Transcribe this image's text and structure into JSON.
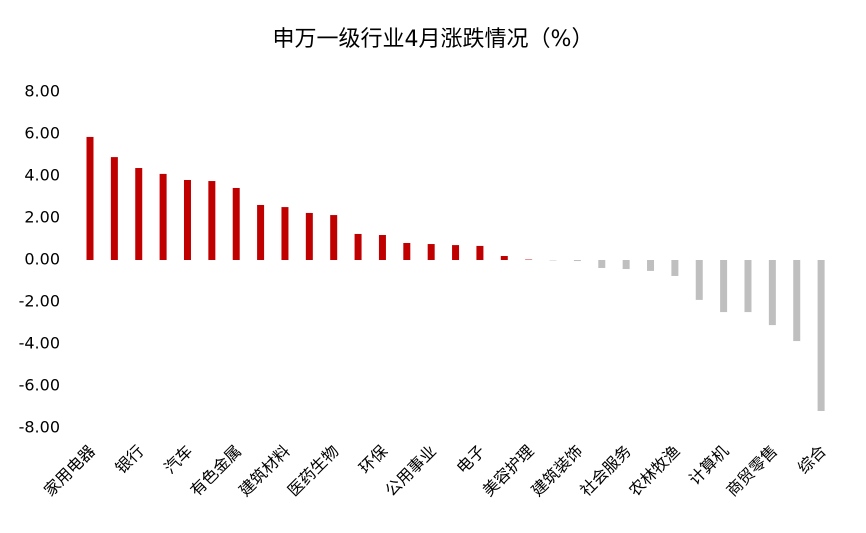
{
  "chart_data": {
    "type": "bar",
    "title": "申万一级行业4月涨跌情况（%）",
    "categories": [
      "家用电器",
      null,
      "银行",
      null,
      "汽车",
      null,
      "有色金属",
      null,
      "建筑材料",
      null,
      "医药生物",
      null,
      "环保",
      null,
      "公用事业",
      null,
      "电子",
      null,
      "美容护理",
      null,
      "建筑装饰",
      null,
      "社会服务",
      null,
      "农林牧渔",
      null,
      "计算机",
      null,
      "商贸零售",
      null,
      "综合"
    ],
    "values": [
      5.86,
      4.9,
      4.38,
      4.1,
      3.81,
      3.76,
      3.43,
      2.62,
      2.52,
      2.24,
      2.14,
      1.24,
      1.19,
      0.81,
      0.76,
      0.71,
      0.67,
      0.19,
      0.02,
      -0.02,
      -0.05,
      -0.38,
      -0.43,
      -0.52,
      -0.76,
      -1.9,
      -2.48,
      -2.48,
      -3.1,
      -3.86,
      -7.19
    ],
    "positive_color": "#c00000",
    "negative_color": "#bfbfbf",
    "ylim": [
      -8,
      8
    ],
    "yticks": [
      {
        "value": 8,
        "label": "8.00"
      },
      {
        "value": 6,
        "label": "6.00"
      },
      {
        "value": 4,
        "label": "4.00"
      },
      {
        "value": 2,
        "label": "2.00"
      },
      {
        "value": 0,
        "label": "0.00"
      },
      {
        "value": -2,
        "label": "-2.00"
      },
      {
        "value": -4,
        "label": "-4.00"
      },
      {
        "value": -6,
        "label": "-6.00"
      },
      {
        "value": -8,
        "label": "-8.00"
      }
    ],
    "grid": false
  }
}
